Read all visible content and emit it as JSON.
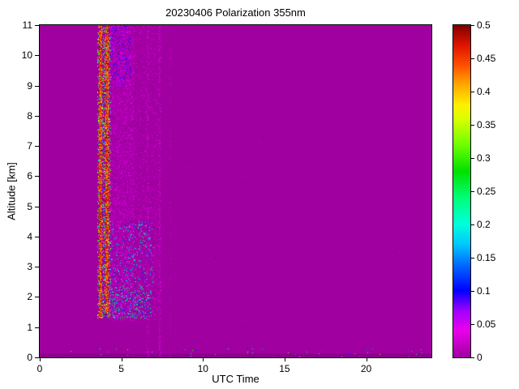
{
  "figure": {
    "background": "#ffffff",
    "axis_color": "#000000"
  },
  "chart_data": {
    "type": "heatmap",
    "title": "20230406 Polarization 355nm",
    "xlabel": "UTC Time",
    "ylabel": "Altitude [km]",
    "xlim": [
      0,
      24
    ],
    "ylim": [
      0,
      11
    ],
    "xticks": [
      0,
      5,
      10,
      15,
      20
    ],
    "xtick_labels": [
      "0",
      "5",
      "10",
      "15",
      "20"
    ],
    "yticks": [
      0,
      1,
      2,
      3,
      4,
      5,
      6,
      7,
      8,
      9,
      10,
      11
    ],
    "ytick_labels": [
      "0",
      "1",
      "2",
      "3",
      "4",
      "5",
      "6",
      "7",
      "8",
      "9",
      "10",
      "11"
    ],
    "grid": false,
    "background_value": 0,
    "colorbar": {
      "min": 0,
      "max": 0.5,
      "position": "right",
      "ticks": [
        0,
        0.05,
        0.1,
        0.15,
        0.2,
        0.25,
        0.3,
        0.35,
        0.4,
        0.45,
        0.5
      ],
      "tick_labels": [
        "0",
        "0.05",
        "0.1",
        "0.15",
        "0.2",
        "0.25",
        "0.3",
        "0.35",
        "0.4",
        "0.45",
        "0.5"
      ],
      "stops": [
        [
          0.0,
          160,
          0,
          160
        ],
        [
          0.04,
          235,
          0,
          235
        ],
        [
          0.07,
          160,
          0,
          255
        ],
        [
          0.1,
          0,
          0,
          255
        ],
        [
          0.14,
          0,
          110,
          255
        ],
        [
          0.17,
          0,
          200,
          255
        ],
        [
          0.2,
          0,
          255,
          220
        ],
        [
          0.24,
          0,
          255,
          120
        ],
        [
          0.28,
          0,
          225,
          0
        ],
        [
          0.32,
          110,
          255,
          0
        ],
        [
          0.36,
          220,
          255,
          0
        ],
        [
          0.38,
          255,
          240,
          0
        ],
        [
          0.41,
          255,
          170,
          0
        ],
        [
          0.44,
          255,
          80,
          0
        ],
        [
          0.47,
          225,
          20,
          0
        ],
        [
          0.5,
          128,
          0,
          0
        ]
      ]
    },
    "noise_seed": 42,
    "features": [
      {
        "name": "surface-shadow-band",
        "x": [
          0,
          24
        ],
        "y": [
          0,
          0.12
        ],
        "fill": "#8c008c"
      },
      {
        "name": "aerosol-plume-core",
        "x": [
          3.55,
          4.35
        ],
        "y": [
          1.3,
          11
        ],
        "density": 0.5,
        "values": [
          0.03,
          0.5
        ]
      },
      {
        "name": "high-depol-column-1",
        "x": [
          3.63,
          3.8
        ],
        "y": [
          1.3,
          11
        ],
        "density": 2.2,
        "values": [
          0.4,
          0.5
        ]
      },
      {
        "name": "high-depol-column-2",
        "x": [
          4.02,
          4.22
        ],
        "y": [
          1.5,
          11
        ],
        "density": 1.8,
        "values": [
          0.4,
          0.5
        ]
      },
      {
        "name": "haze-speckle-near",
        "x": [
          4.3,
          5.8
        ],
        "y": [
          1.2,
          11
        ],
        "density": 0.3,
        "values": [
          0.005,
          0.05
        ]
      },
      {
        "name": "haze-speckle-far",
        "x": [
          5.8,
          7.25
        ],
        "y": [
          1.2,
          11
        ],
        "density": 0.12,
        "values": [
          0.005,
          0.04
        ]
      },
      {
        "name": "low-altitude-speckle",
        "x": [
          4.3,
          7.0
        ],
        "y": [
          1.3,
          4.5
        ],
        "density": 0.1,
        "values": [
          0.05,
          0.25
        ]
      },
      {
        "name": "cloud-layer-speckle",
        "x": [
          4.4,
          6.8
        ],
        "y": [
          1.3,
          2.3
        ],
        "density": 0.15,
        "values": [
          0.05,
          0.3
        ]
      },
      {
        "name": "upper-speckle",
        "x": [
          4.35,
          5.6
        ],
        "y": [
          9.0,
          11
        ],
        "density": 0.28,
        "values": [
          0.01,
          0.12
        ]
      },
      {
        "name": "faint-column-1",
        "x": [
          6.55,
          6.68
        ],
        "y": [
          0,
          11
        ],
        "density": 0.35,
        "values": [
          0.005,
          0.04
        ]
      },
      {
        "name": "faint-column-2",
        "x": [
          7.28,
          7.42
        ],
        "y": [
          0,
          11
        ],
        "density": 0.4,
        "values": [
          0.005,
          0.05
        ]
      },
      {
        "name": "faint-column-3",
        "x": [
          7.95,
          8.05
        ],
        "y": [
          0,
          11
        ],
        "density": 0.15,
        "values": [
          0.005,
          0.03
        ]
      },
      {
        "name": "ground-level-dots",
        "x": [
          0,
          24
        ],
        "y": [
          0,
          0.3
        ],
        "density": 0.012,
        "values": [
          0.02,
          0.35
        ]
      },
      {
        "name": "sparse-background-dots",
        "x": [
          0,
          24
        ],
        "y": [
          0,
          11
        ],
        "density": 0.0001,
        "values": [
          0.02,
          0.1
        ]
      }
    ]
  }
}
